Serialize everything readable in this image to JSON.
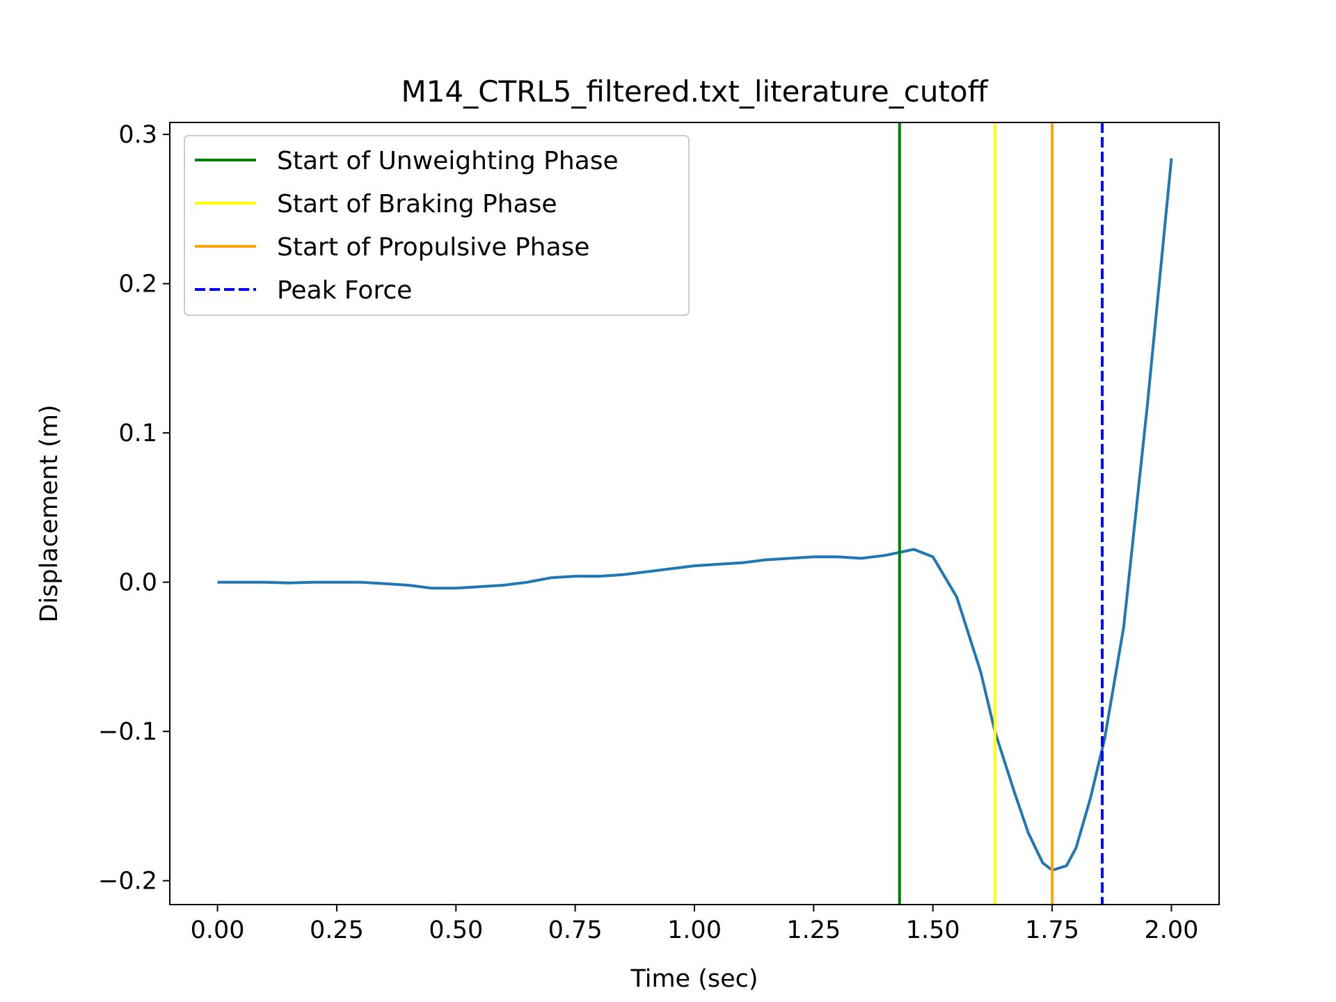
{
  "chart_data": {
    "type": "line",
    "title": "M14_CTRL5_filtered.txt_literature_cutoff",
    "xlabel": "Time (sec)",
    "ylabel": "Displacement (m)",
    "xlim": [
      -0.1,
      2.1
    ],
    "ylim": [
      -0.216,
      0.308
    ],
    "xticks": [
      0.0,
      0.25,
      0.5,
      0.75,
      1.0,
      1.25,
      1.5,
      1.75,
      2.0
    ],
    "xtick_labels": [
      "0.00",
      "0.25",
      "0.50",
      "0.75",
      "1.00",
      "1.25",
      "1.50",
      "1.75",
      "2.00"
    ],
    "yticks": [
      -0.2,
      -0.1,
      0.0,
      0.1,
      0.2,
      0.3
    ],
    "ytick_labels": [
      "−0.2",
      "−0.1",
      "0.0",
      "0.1",
      "0.2",
      "0.3"
    ],
    "grid": false,
    "legend_position": "top-left",
    "series": [
      {
        "color": "#1f77b4",
        "x": [
          0.0,
          0.05,
          0.1,
          0.15,
          0.2,
          0.25,
          0.3,
          0.35,
          0.4,
          0.45,
          0.5,
          0.55,
          0.6,
          0.65,
          0.7,
          0.75,
          0.8,
          0.85,
          0.9,
          0.95,
          1.0,
          1.05,
          1.1,
          1.15,
          1.2,
          1.25,
          1.3,
          1.35,
          1.4,
          1.43,
          1.46,
          1.5,
          1.55,
          1.6,
          1.63,
          1.67,
          1.7,
          1.73,
          1.75,
          1.78,
          1.8,
          1.83,
          1.86,
          1.9,
          1.95,
          2.0
        ],
        "y": [
          0.0,
          0.0,
          0.0,
          -0.0005,
          0.0,
          0.0,
          0.0,
          -0.001,
          -0.002,
          -0.004,
          -0.004,
          -0.003,
          -0.002,
          0.0,
          0.003,
          0.004,
          0.004,
          0.005,
          0.007,
          0.009,
          0.011,
          0.012,
          0.013,
          0.015,
          0.016,
          0.017,
          0.017,
          0.016,
          0.018,
          0.02,
          0.022,
          0.017,
          -0.01,
          -0.06,
          -0.1,
          -0.14,
          -0.168,
          -0.188,
          -0.193,
          -0.19,
          -0.178,
          -0.145,
          -0.105,
          -0.03,
          0.12,
          0.284
        ]
      }
    ],
    "vlines": [
      {
        "label": "Start of Unweighting Phase",
        "x": 1.43,
        "color": "#008000",
        "style": "solid"
      },
      {
        "label": "Start of Braking Phase",
        "x": 1.63,
        "color": "#ffff00",
        "style": "solid"
      },
      {
        "label": "Start of Propulsive Phase",
        "x": 1.75,
        "color": "#ffa500",
        "style": "solid"
      },
      {
        "label": "Peak Force",
        "x": 1.855,
        "color": "#0000ff",
        "style": "dashed"
      }
    ]
  }
}
